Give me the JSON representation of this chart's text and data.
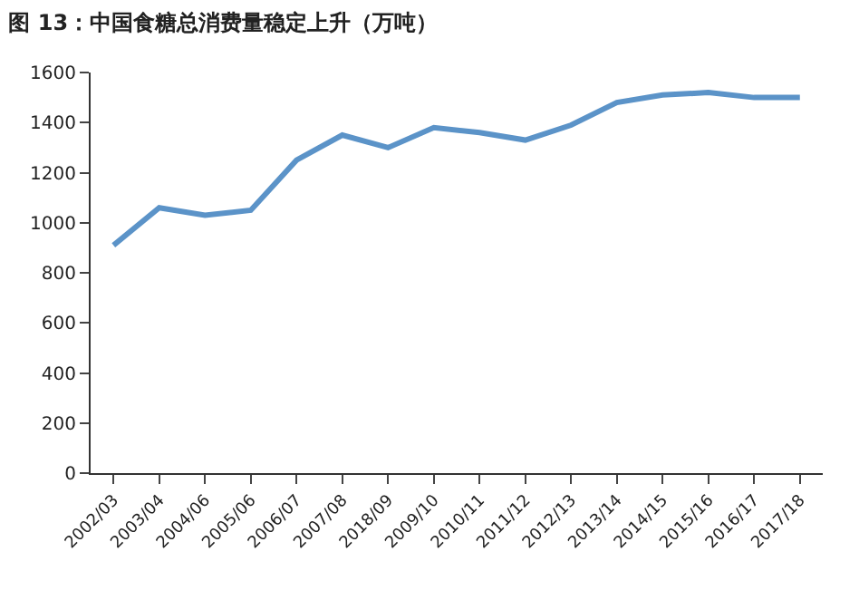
{
  "chart_data": {
    "type": "line",
    "title": "图 13：中国食糖总消费量稳定上升（万吨）",
    "categories": [
      "2002/03",
      "2003/04",
      "2004/06",
      "2005/06",
      "2006/07",
      "2007/08",
      "2018/09",
      "2009/10",
      "2010/11",
      "2011/12",
      "2012/13",
      "2013/14",
      "2014/15",
      "2015/16",
      "2016/17",
      "2017/18"
    ],
    "series": [
      {
        "color": "#5b93c8",
        "values": [
          910,
          1060,
          1030,
          1050,
          1250,
          1350,
          1300,
          1380,
          1360,
          1330,
          1390,
          1480,
          1510,
          1520,
          1500,
          1500
        ]
      }
    ],
    "ylim": [
      0,
      1600
    ],
    "yticks": [
      0,
      200,
      400,
      600,
      800,
      1000,
      1200,
      1400,
      1600
    ],
    "marker": "none",
    "line_style": "solid"
  }
}
